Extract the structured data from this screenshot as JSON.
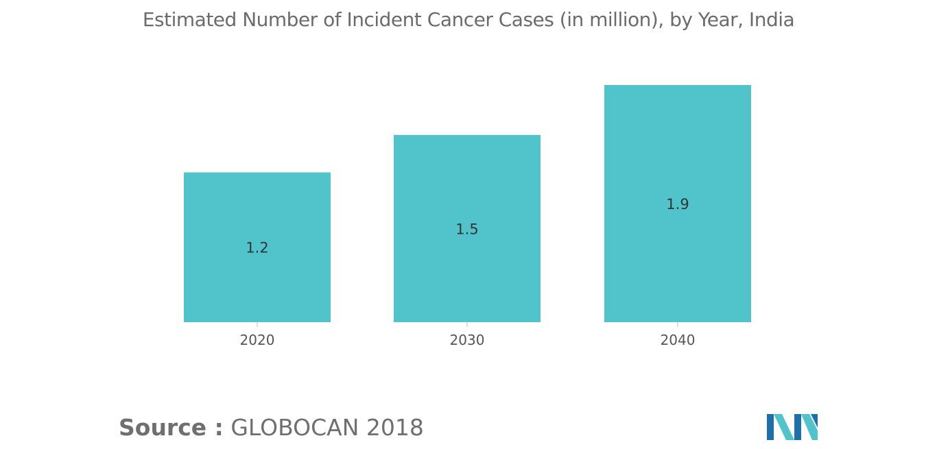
{
  "chart_data": {
    "type": "bar",
    "title": "Estimated Number of Incident Cancer Cases (in million), by Year, India",
    "xlabel": "",
    "ylabel": "",
    "categories": [
      "2020",
      "2030",
      "2040"
    ],
    "values": [
      1.2,
      1.5,
      1.9
    ],
    "data_labels": [
      "1.2",
      "1.5",
      "1.9"
    ],
    "ylim": [
      0,
      1.9
    ],
    "grid": false,
    "legend": "none",
    "bar_color": "#51c4cb"
  },
  "source": {
    "label": "Source :",
    "value": "GLOBOCAN 2018"
  },
  "logo": {
    "icon": "mordor-intelligence-logo",
    "colors": [
      "#1f6fa8",
      "#51c4cb"
    ]
  }
}
